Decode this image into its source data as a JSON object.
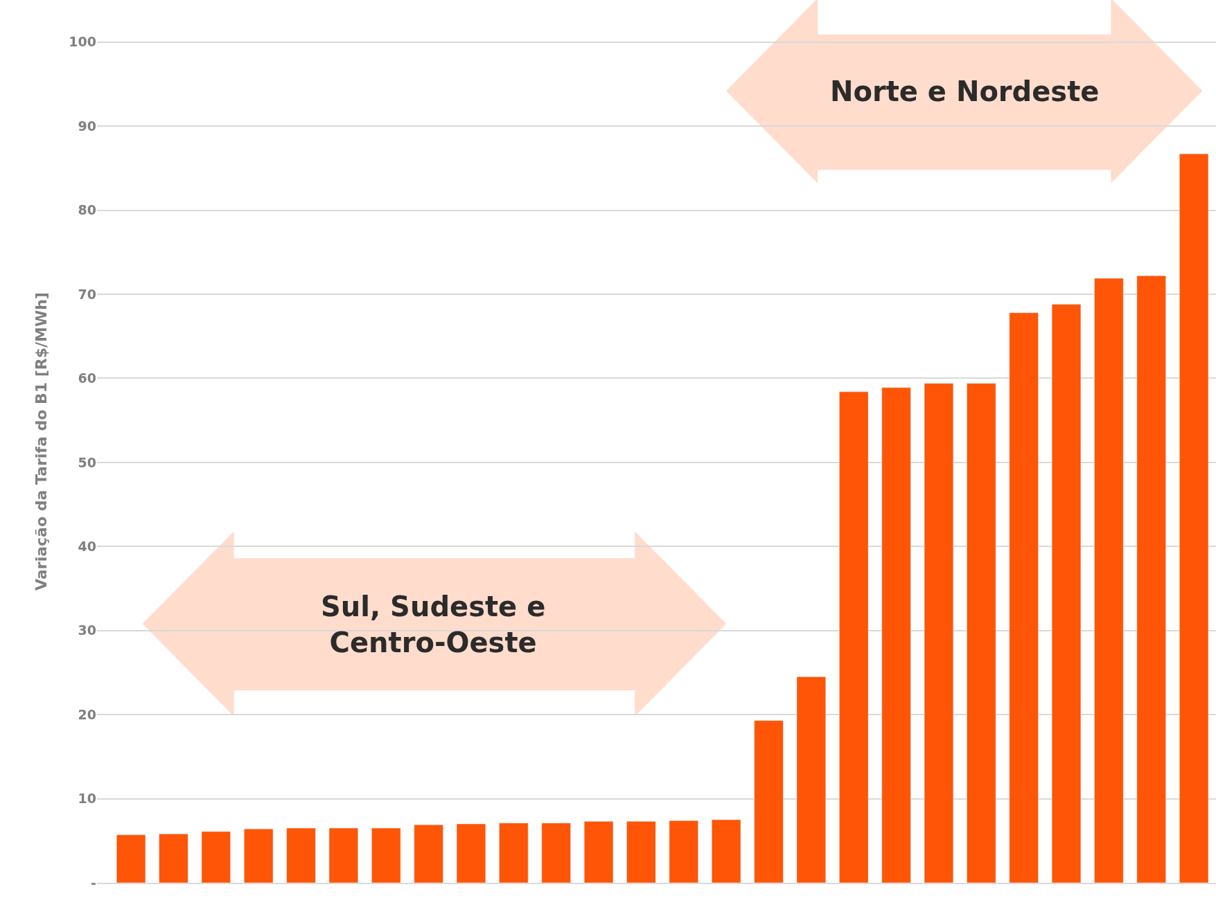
{
  "chart_data": {
    "type": "bar",
    "ylabel": "Variação da Tarifa do B1 [R$/MWh]",
    "categories": [
      null,
      null,
      null,
      null,
      null,
      null,
      null,
      null,
      null,
      null,
      null,
      null,
      null,
      null,
      null,
      null,
      null,
      null,
      null,
      null,
      null,
      null,
      null,
      null,
      null,
      null
    ],
    "values": [
      5.7,
      5.8,
      6.1,
      6.4,
      6.5,
      6.5,
      6.5,
      6.9,
      7.0,
      7.1,
      7.1,
      7.3,
      7.3,
      7.4,
      7.5,
      19.3,
      24.5,
      58.4,
      58.9,
      59.4,
      59.4,
      67.8,
      68.8,
      71.9,
      72.2,
      86.7
    ],
    "color": "#ff5506",
    "ylim": [
      0,
      105
    ],
    "yticks": [
      {
        "value": 0,
        "label": "-"
      },
      10,
      20,
      30,
      40,
      50,
      60,
      70,
      80,
      90,
      100
    ],
    "grid": "y",
    "annotations": [
      "Sul, Sudeste e\nCentro-Oeste",
      "Norte e Nordeste"
    ]
  }
}
